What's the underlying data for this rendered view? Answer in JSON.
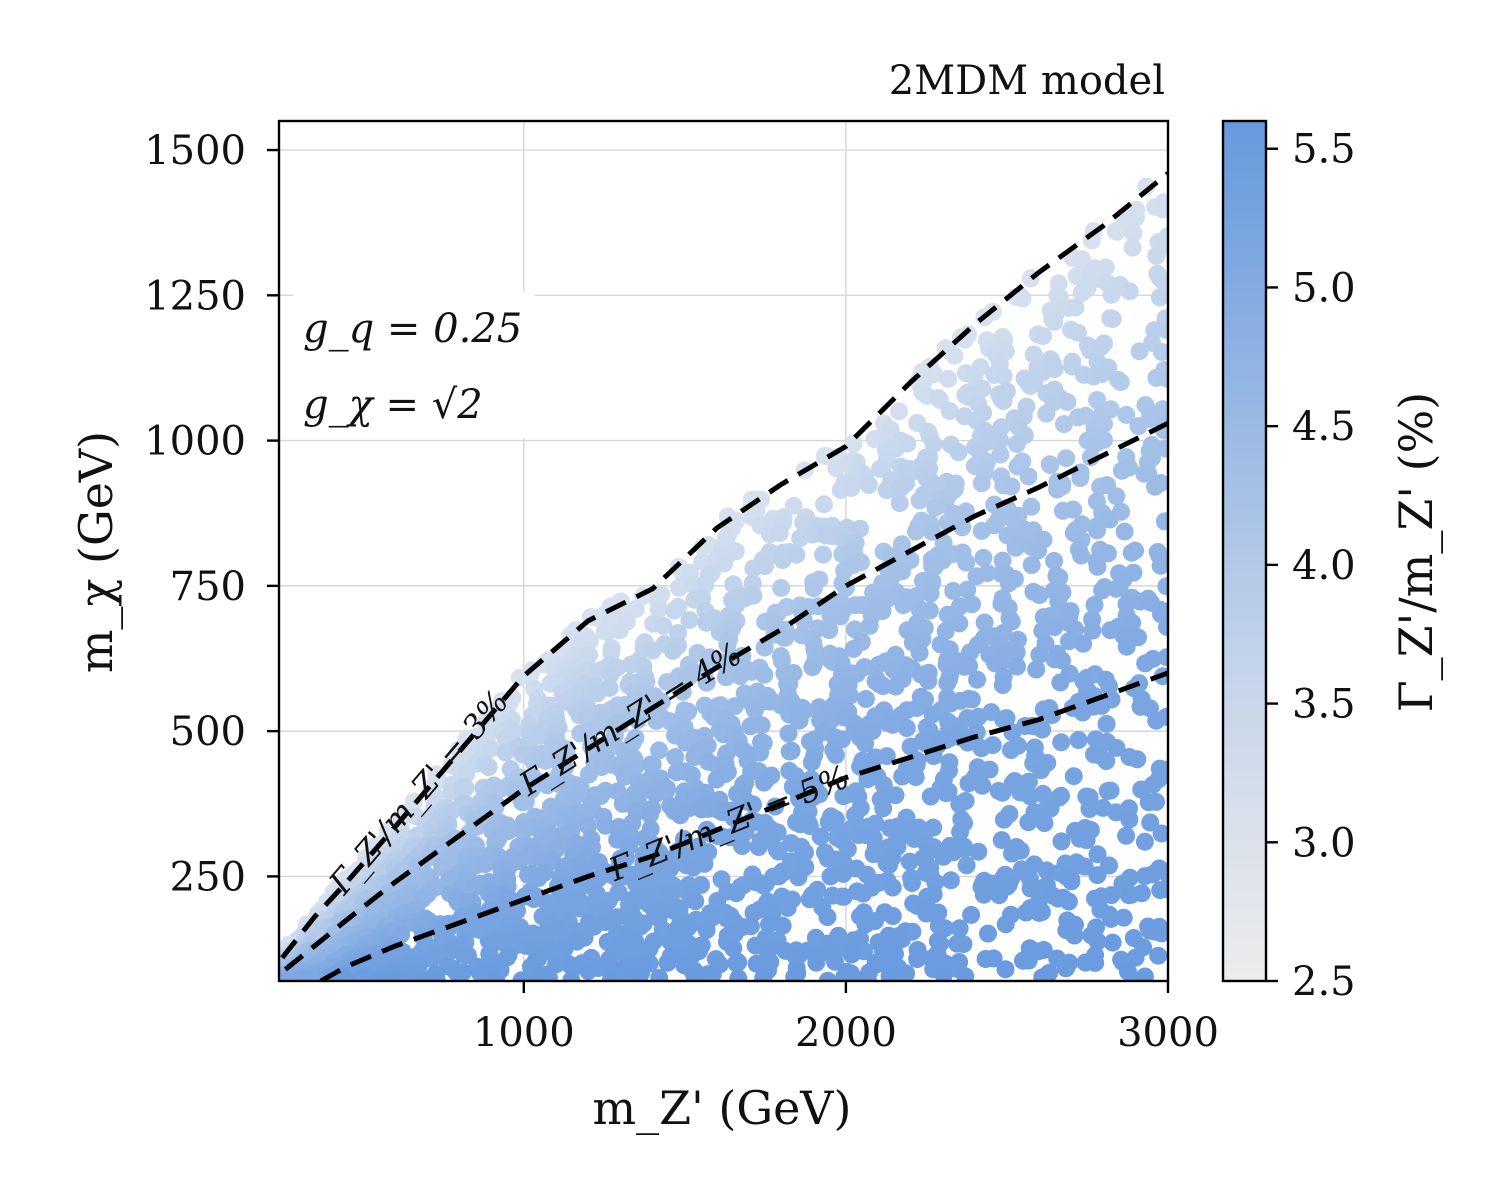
{
  "chart_data": {
    "type": "scatter",
    "title": "2MDM model",
    "xlabel": "m_Z' (GeV)",
    "ylabel": "m_χ (GeV)",
    "colorbar_label": "Γ_Z'/m_Z' (%)",
    "xlim": [
      240,
      3000
    ],
    "ylim": [
      70,
      1550
    ],
    "x_ticks": [
      "1000",
      "2000",
      "3000"
    ],
    "x_tick_values": [
      1000,
      2000,
      3000
    ],
    "y_ticks": [
      "250",
      "500",
      "750",
      "1000",
      "1250",
      "1500"
    ],
    "y_tick_values": [
      250,
      500,
      750,
      1000,
      1250,
      1500
    ],
    "colorbar_range": [
      2.5,
      5.6
    ],
    "colorbar_ticks": [
      "2.5",
      "3.0",
      "3.5",
      "4.0",
      "4.5",
      "5.0",
      "5.5"
    ],
    "colorbar_tick_values": [
      2.5,
      3.0,
      3.5,
      4.0,
      4.5,
      5.0,
      5.5
    ],
    "colormap": [
      "#eaeaea",
      "#6699dd"
    ],
    "point_color_low": "#d8e2ef",
    "point_color_high": "#6a9bdf",
    "annotation": {
      "gq": "g_q = 0.25",
      "gchi": "g_χ = √2"
    },
    "contours": [
      {
        "name": "width-3-percent",
        "label": "Γ_Z'/m_Z' = 3%",
        "x": [
          250,
          350,
          450,
          600,
          800,
          1000,
          1200,
          1400,
          1600,
          1800,
          2000,
          2200,
          2400,
          2600,
          2800,
          3000
        ],
        "y": [
          110,
          180,
          240,
          335,
          465,
          595,
          690,
          745,
          850,
          925,
          990,
          1100,
          1200,
          1290,
          1370,
          1460
        ]
      },
      {
        "name": "width-4-percent",
        "label": "Γ_Z'/m_Z' = 4%",
        "x": [
          260,
          350,
          450,
          600,
          800,
          1000,
          1200,
          1400,
          1600,
          1800,
          2000,
          2200,
          2400,
          2600,
          2800,
          3000
        ],
        "y": [
          90,
          130,
          175,
          240,
          320,
          400,
          470,
          540,
          610,
          675,
          750,
          810,
          870,
          920,
          975,
          1030
        ]
      },
      {
        "name": "width-5-percent",
        "label": "Γ_Z'/m_Z' = 5%",
        "x": [
          370,
          450,
          600,
          800,
          1000,
          1200,
          1400,
          1600,
          1800,
          2000,
          2200,
          2400,
          2600,
          2800,
          2950,
          3000
        ],
        "y": [
          70,
          95,
          130,
          170,
          210,
          250,
          285,
          330,
          375,
          420,
          455,
          490,
          520,
          560,
          590,
          600
        ]
      }
    ],
    "scatter_region": {
      "description": "dense random scan points filling region below Γ_Z'/m_Z' = 3% contour",
      "x_range": [
        240,
        3000
      ],
      "y_range": [
        70,
        1470
      ],
      "n_points": 2600
    }
  }
}
